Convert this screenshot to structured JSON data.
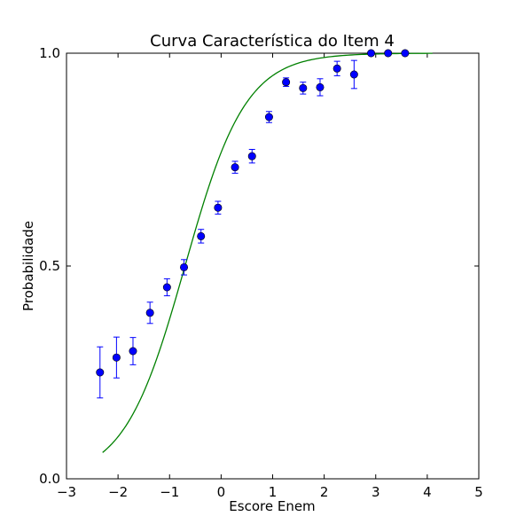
{
  "chart_data": {
    "type": "scatter",
    "title": "Curva Característica do Item 4",
    "xlabel": "Escore Enem",
    "ylabel": "Probabilidade",
    "xlim": [
      -3,
      5
    ],
    "ylim": [
      0,
      1
    ],
    "xticks": [
      -3,
      -2,
      -1,
      0,
      1,
      2,
      3,
      4,
      5
    ],
    "xtick_labels": [
      "−3",
      "−2",
      "−1",
      "0",
      "1",
      "2",
      "3",
      "4",
      "5"
    ],
    "yticks": [
      0,
      0.5,
      1
    ],
    "ytick_labels": [
      "0.0",
      "0.5",
      "1.0"
    ],
    "grid": false,
    "series": [
      {
        "kind": "errorbar",
        "color": "#0000ff",
        "x": [
          -2.35,
          -2.03,
          -1.71,
          -1.38,
          -1.05,
          -0.72,
          -0.39,
          -0.06,
          0.27,
          0.6,
          0.93,
          1.26,
          1.59,
          1.92,
          2.25,
          2.58,
          2.91,
          3.24,
          3.57
        ],
        "y": [
          0.25,
          0.285,
          0.3,
          0.39,
          0.45,
          0.497,
          0.57,
          0.637,
          0.732,
          0.758,
          0.85,
          0.932,
          0.918,
          0.92,
          0.964,
          0.95,
          1.0,
          1.0,
          1.0
        ],
        "err": [
          0.06,
          0.048,
          0.032,
          0.025,
          0.02,
          0.018,
          0.016,
          0.015,
          0.014,
          0.016,
          0.013,
          0.01,
          0.014,
          0.02,
          0.017,
          0.033,
          0.0,
          0.0,
          0.0
        ]
      },
      {
        "kind": "line",
        "color": "#008000",
        "curve": "logistic",
        "a": 1.0,
        "b": -0.7,
        "c": 0.0,
        "x_range": [
          -2.3,
          4.1
        ]
      }
    ]
  }
}
